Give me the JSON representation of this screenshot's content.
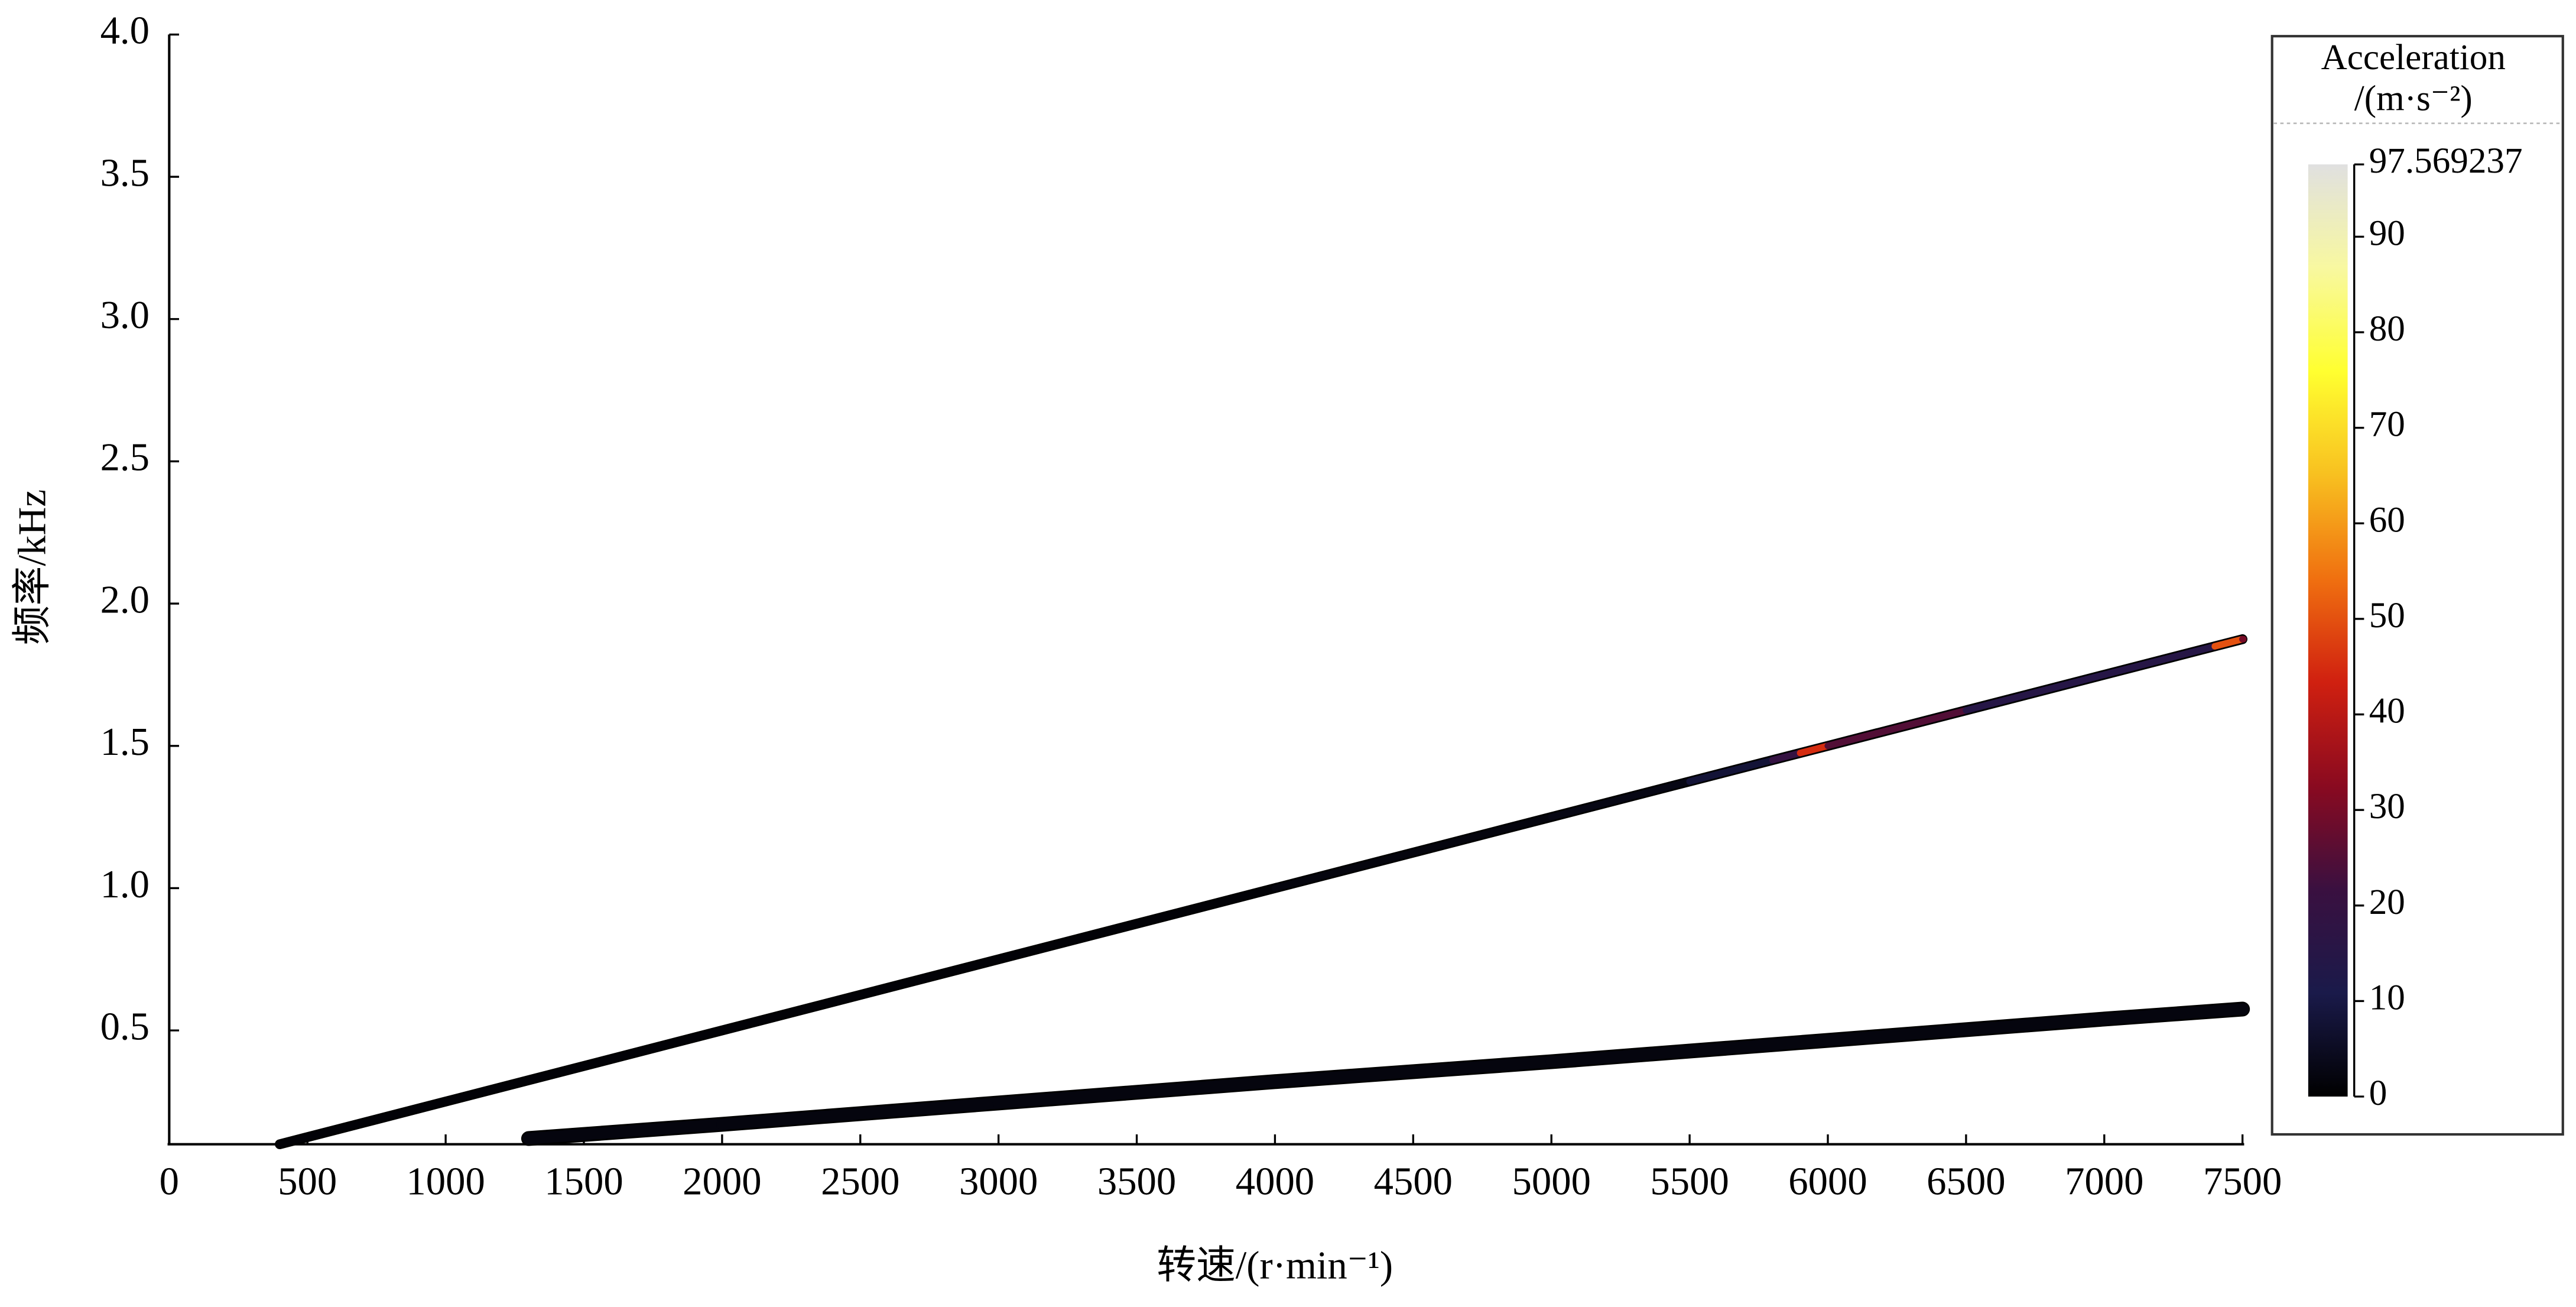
{
  "chart_data": {
    "type": "line",
    "xlabel": "转速/(r·min⁻¹)",
    "ylabel": "频率/kHz",
    "xlim": [
      0,
      7500
    ],
    "xticks": [
      0,
      500,
      1000,
      1500,
      2000,
      2500,
      3000,
      3500,
      4000,
      4500,
      5000,
      5500,
      6000,
      6500,
      7000,
      7500
    ],
    "ylim": [
      0.1,
      4.0
    ],
    "yticks": [
      0.5,
      {
        "value": 1,
        "label": "1.0"
      },
      1.5,
      {
        "value": 2,
        "label": "2.0"
      },
      2.5,
      {
        "value": 3,
        "label": "3.0"
      },
      3.5,
      {
        "value": 4,
        "label": "4.0"
      }
    ],
    "series": [
      {
        "x": [
          400,
          1000,
          2000,
          3000,
          4000,
          5000,
          5500,
          5800,
          5900,
          6000,
          6500,
          7000,
          7400,
          7500
        ],
        "values": [
          0.1,
          0.25,
          0.5,
          0.75,
          1.0,
          1.25,
          1.375,
          1.45,
          1.475,
          1.5,
          1.625,
          1.75,
          1.85,
          1.875
        ],
        "amplitude": [
          1,
          1,
          1,
          1,
          2,
          3,
          8,
          20,
          45,
          25,
          15,
          15,
          50,
          30
        ]
      },
      {
        "x": [
          1300,
          2000,
          3000,
          4000,
          5000,
          6000,
          7000,
          7500
        ],
        "values": [
          0.12,
          0.17,
          0.245,
          0.32,
          0.39,
          0.465,
          0.54,
          0.575
        ],
        "amplitude": [
          2,
          2,
          2,
          2,
          2,
          2,
          2,
          2
        ]
      }
    ],
    "colorbar": {
      "title": [
        "Acceleration",
        "/(m·s⁻²)"
      ],
      "lim": [
        0,
        97.569237
      ],
      "ticks": [
        0,
        10,
        20,
        30,
        40,
        50,
        60,
        70,
        80,
        90,
        97.569237
      ],
      "colormap": [
        "#000000",
        "#1a1a4a",
        "#3a1040",
        "#8a0a20",
        "#d02010",
        "#f07010",
        "#f8c020",
        "#ffff30",
        "#f8f8a0",
        "#e0e0e0"
      ]
    }
  }
}
